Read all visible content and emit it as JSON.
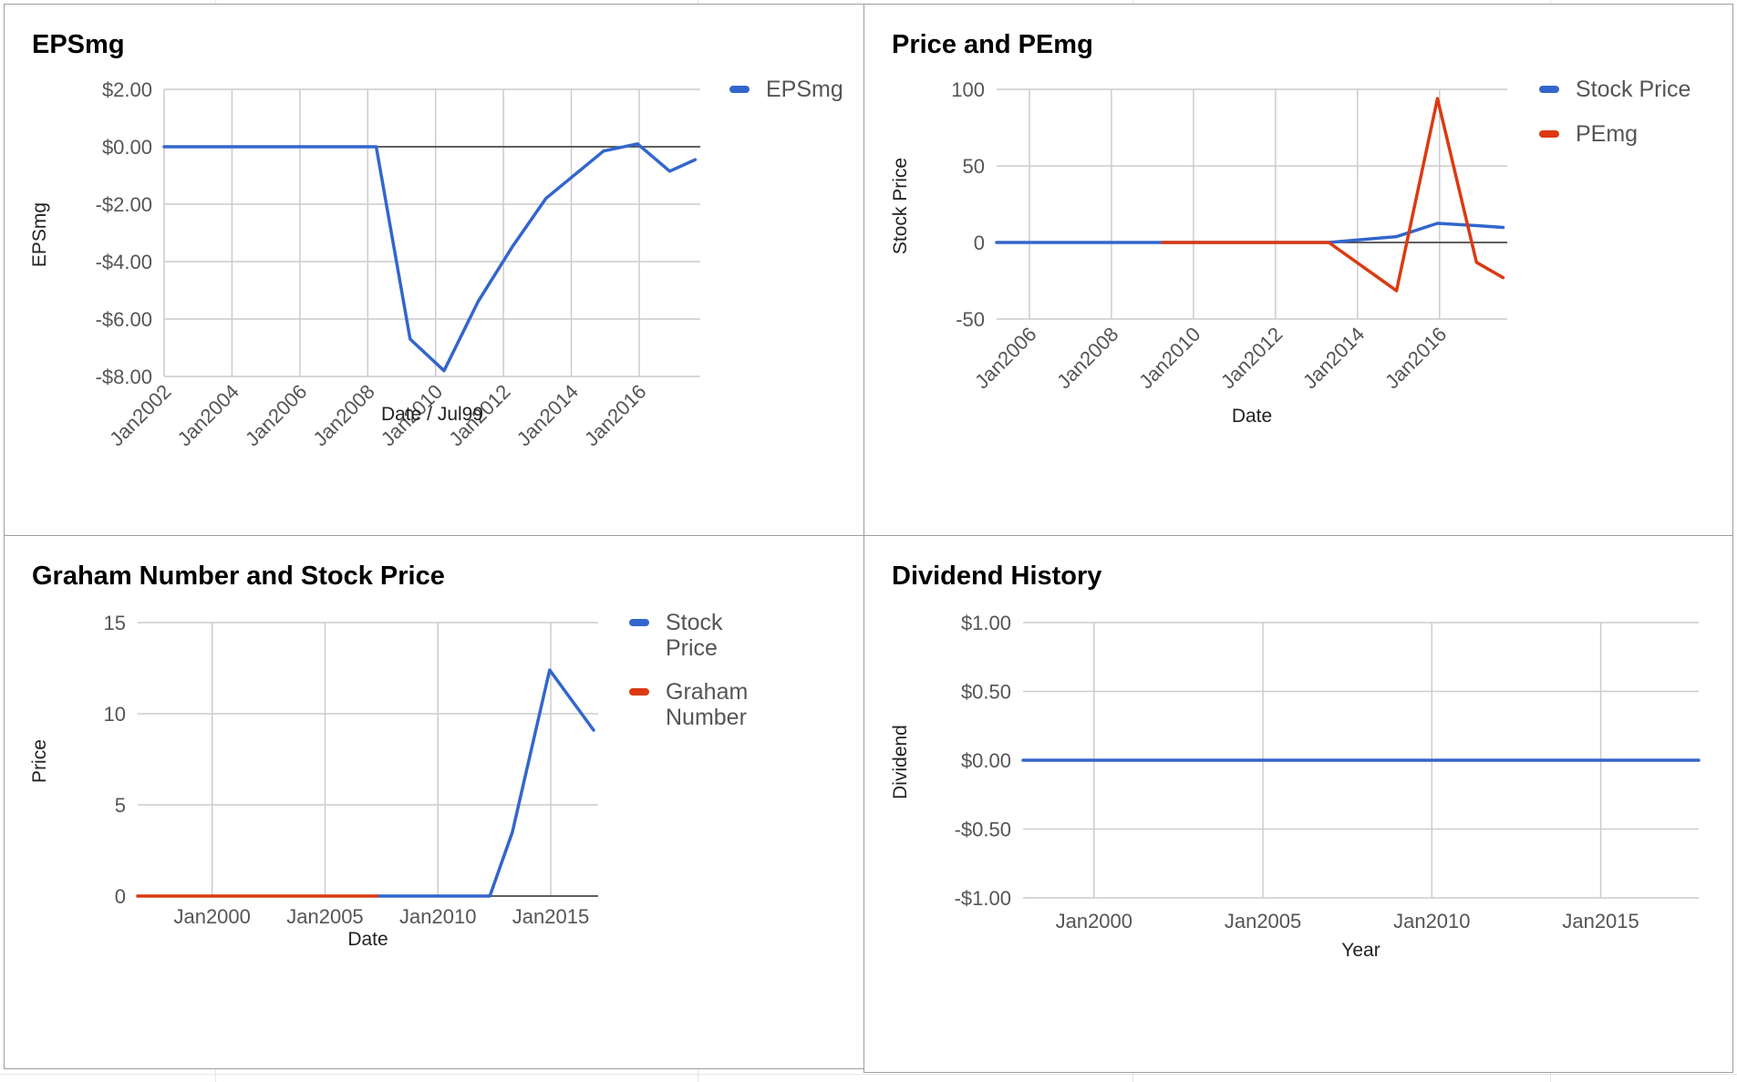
{
  "colors": {
    "blue": "#3366cc",
    "red": "#dc3912",
    "grid": "#cccccc",
    "zero": "#333333",
    "tick_text": "#555555",
    "axis_title": "#222222"
  },
  "chart_data": [
    {
      "id": "epsmg",
      "type": "line",
      "title": "EPSmg",
      "xlabel": "Date / Jul99",
      "ylabel": "EPSmg",
      "xlim": [
        2002,
        2017.8
      ],
      "ylim": [
        -8,
        2
      ],
      "x_ticks": [
        2002,
        2004,
        2006,
        2008,
        2010,
        2012,
        2014,
        2016
      ],
      "x_tick_labels": [
        "Jan2002",
        "Jan2004",
        "Jan2006",
        "Jan2008",
        "Jan2010",
        "Jan2012",
        "Jan2014",
        "Jan2016"
      ],
      "x_tick_rotate": true,
      "y_ticks": [
        2,
        0,
        -2,
        -4,
        -6,
        -8
      ],
      "y_tick_labels": [
        "$2.00",
        "$0.00",
        "-$2.00",
        "-$4.00",
        "-$6.00",
        "-$8.00"
      ],
      "grid": true,
      "legend": "right",
      "series": [
        {
          "name": "EPSmg",
          "color": "#3366cc",
          "points": [
            [
              2002.0,
              0.0
            ],
            [
              2008.25,
              0.0
            ],
            [
              2009.25,
              -6.7
            ],
            [
              2010.25,
              -7.8
            ],
            [
              2011.25,
              -5.4
            ],
            [
              2012.25,
              -3.5
            ],
            [
              2013.25,
              -1.8
            ],
            [
              2014.95,
              -0.15
            ],
            [
              2015.95,
              0.1
            ],
            [
              2016.9,
              -0.85
            ],
            [
              2017.65,
              -0.45
            ]
          ]
        }
      ]
    },
    {
      "id": "price-pemg",
      "type": "line",
      "title": "Price and PEmg",
      "xlabel": "Date",
      "ylabel": "Stock Price",
      "xlim": [
        2005.2,
        2017.65
      ],
      "ylim": [
        -50,
        100
      ],
      "x_ticks": [
        2006,
        2008,
        2010,
        2012,
        2014,
        2016
      ],
      "x_tick_labels": [
        "Jan2006",
        "Jan2008",
        "Jan2010",
        "Jan2012",
        "Jan2014",
        "Jan2016"
      ],
      "x_tick_rotate": true,
      "y_ticks": [
        100,
        50,
        0,
        -50
      ],
      "y_tick_labels": [
        "100",
        "50",
        "0",
        "-50"
      ],
      "grid": true,
      "legend": "right",
      "series": [
        {
          "name": "Stock Price",
          "color": "#3366cc",
          "points": [
            [
              2005.2,
              0.0
            ],
            [
              2013.3,
              0.0
            ],
            [
              2014.95,
              3.8
            ],
            [
              2015.95,
              12.5
            ],
            [
              2016.9,
              11.0
            ],
            [
              2017.55,
              9.8
            ]
          ]
        },
        {
          "name": "PEmg",
          "color": "#dc3912",
          "points": [
            [
              2009.25,
              0.0
            ],
            [
              2013.3,
              0.0
            ],
            [
              2014.95,
              -31.5
            ],
            [
              2015.95,
              94.0
            ],
            [
              2016.9,
              -13.0
            ],
            [
              2017.55,
              -23.0
            ]
          ]
        }
      ]
    },
    {
      "id": "graham",
      "type": "line",
      "title": "Graham Number and Stock Price",
      "xlabel": "Date",
      "ylabel": "Price",
      "xlim": [
        1996.7,
        2017.1
      ],
      "ylim": [
        0,
        15
      ],
      "x_ticks": [
        2000,
        2005,
        2010,
        2015
      ],
      "x_tick_labels": [
        "Jan2000",
        "Jan2005",
        "Jan2010",
        "Jan2015"
      ],
      "x_tick_rotate": false,
      "y_ticks": [
        15,
        10,
        5,
        0
      ],
      "y_tick_labels": [
        "15",
        "10",
        "5",
        "0"
      ],
      "grid": true,
      "legend": "right",
      "series": [
        {
          "name": "Stock Price",
          "color": "#3366cc",
          "points": [
            [
              2007.3,
              0.0
            ],
            [
              2012.3,
              0.0
            ],
            [
              2013.3,
              3.5
            ],
            [
              2014.95,
              12.4
            ],
            [
              2016.9,
              9.1
            ]
          ]
        },
        {
          "name": "Graham Number",
          "color": "#dc3912",
          "points": [
            [
              1996.7,
              0.0
            ],
            [
              2007.3,
              0.0
            ]
          ]
        }
      ]
    },
    {
      "id": "dividend",
      "type": "line",
      "title": "Dividend History",
      "xlabel": "Year",
      "ylabel": "Dividend",
      "xlim": [
        1997.9,
        2017.9
      ],
      "ylim": [
        -1,
        1
      ],
      "x_ticks": [
        2000,
        2005,
        2010,
        2015
      ],
      "x_tick_labels": [
        "Jan2000",
        "Jan2005",
        "Jan2010",
        "Jan2015"
      ],
      "x_tick_rotate": false,
      "y_ticks": [
        1,
        0.5,
        0,
        -0.5,
        -1
      ],
      "y_tick_labels": [
        "$1.00",
        "$0.50",
        "$0.00",
        "-$0.50",
        "-$1.00"
      ],
      "grid": true,
      "legend": "none",
      "series": [
        {
          "name": "",
          "color": "#3366cc",
          "points": [
            [
              1997.9,
              0.0
            ],
            [
              2017.9,
              0.0
            ]
          ]
        }
      ]
    }
  ]
}
